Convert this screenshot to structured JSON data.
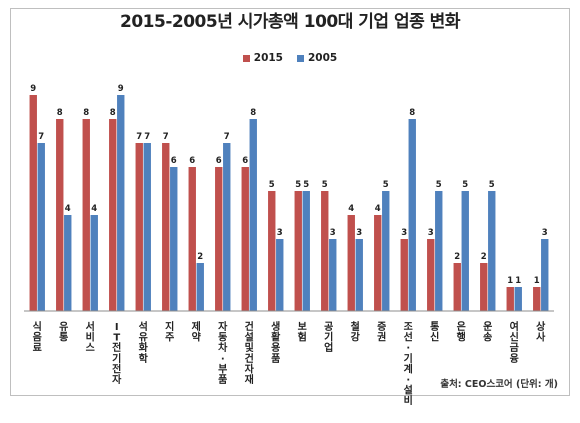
{
  "chart_data": {
    "type": "bar",
    "title": "2015-2005년 시가총액 100대 기업 업종 변화",
    "legend_position": "top",
    "ylim": [
      0,
      10
    ],
    "grid": false,
    "categories": [
      "식음료",
      "유통",
      "서비스",
      "IT전기전자",
      "석유화학",
      "지주",
      "제약",
      "자동차·부품",
      "건설및건자재",
      "생활용품",
      "보험",
      "공기업",
      "철강",
      "증권",
      "조선·기계·설비",
      "통신",
      "은행",
      "운송",
      "여신금융",
      "상사"
    ],
    "series": [
      {
        "name": "2015",
        "color": "#C0504D",
        "values": [
          9,
          8,
          8,
          8,
          7,
          7,
          6,
          6,
          6,
          5,
          5,
          5,
          4,
          4,
          3,
          3,
          2,
          2,
          1,
          1
        ]
      },
      {
        "name": "2005",
        "color": "#4F81BD",
        "values": [
          7,
          4,
          4,
          9,
          7,
          6,
          2,
          7,
          8,
          3,
          5,
          3,
          3,
          5,
          8,
          5,
          5,
          5,
          1,
          3
        ]
      }
    ]
  },
  "source_note": "출처: CEO스코어 (단위: 개)"
}
